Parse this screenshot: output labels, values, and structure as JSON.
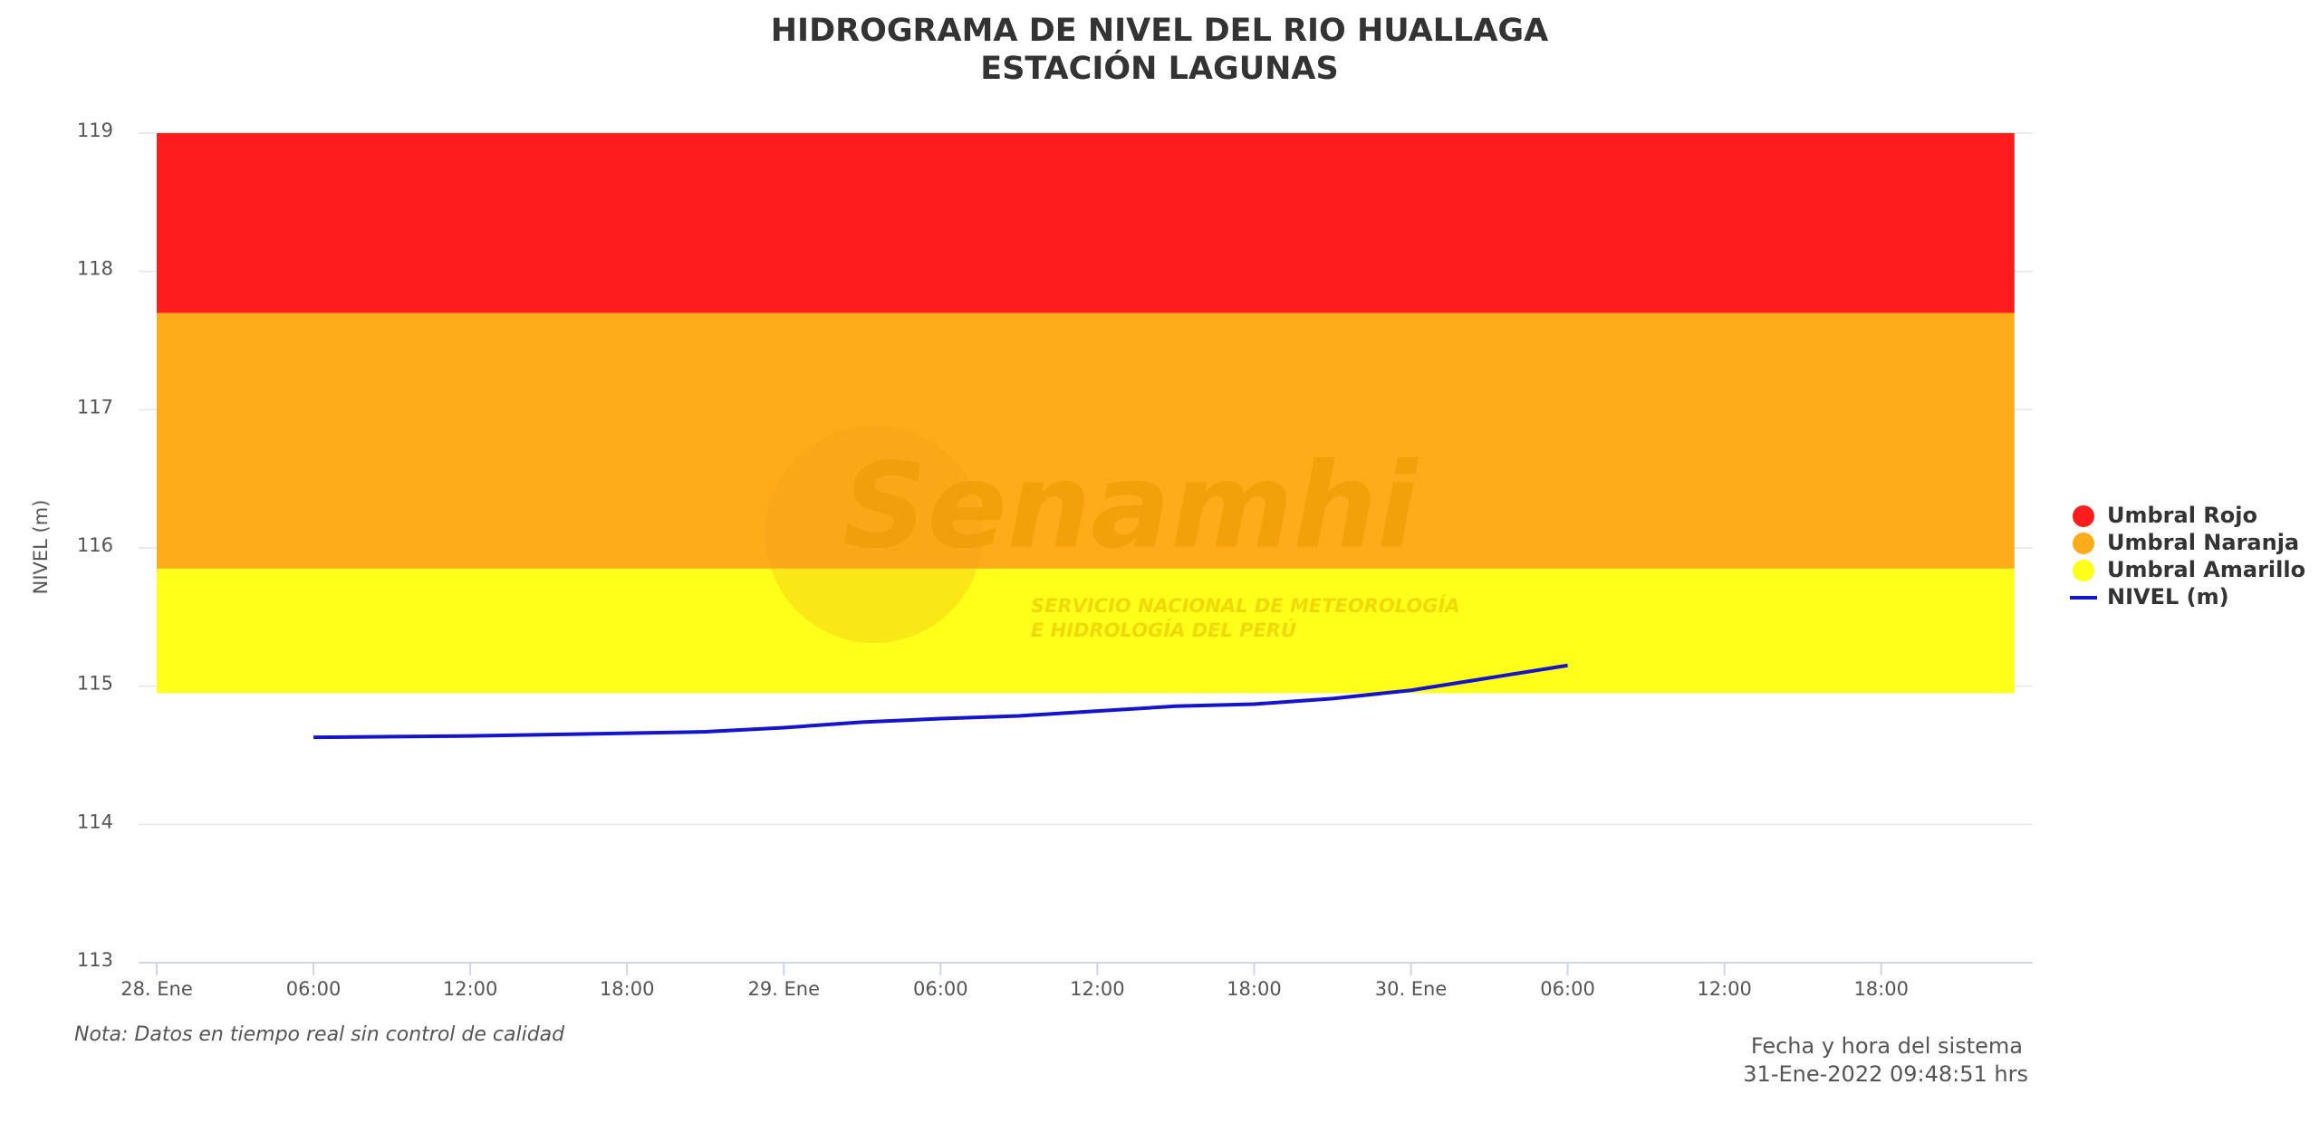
{
  "chart_data": {
    "type": "line",
    "title": "HIDROGRAMA DE NIVEL DEL RIO HUALLAGA",
    "subtitle": "ESTACIÓN LAGUNAS",
    "y_label": "NIVEL (m)",
    "ylim": [
      113,
      119
    ],
    "yticks": [
      113,
      114,
      115,
      116,
      117,
      118,
      119
    ],
    "xlim": [
      0,
      71.8
    ],
    "xticks": [
      {
        "value": 0,
        "label": "28. Ene"
      },
      {
        "value": 6,
        "label": "06:00"
      },
      {
        "value": 12,
        "label": "12:00"
      },
      {
        "value": 18,
        "label": "18:00"
      },
      {
        "value": 24,
        "label": "29. Ene"
      },
      {
        "value": 30,
        "label": "06:00"
      },
      {
        "value": 36,
        "label": "12:00"
      },
      {
        "value": 42,
        "label": "18:00"
      },
      {
        "value": 48,
        "label": "30. Ene"
      },
      {
        "value": 54,
        "label": "06:00"
      },
      {
        "value": 60,
        "label": "12:00"
      },
      {
        "value": 66,
        "label": "18:00"
      }
    ],
    "grid": true,
    "bands": [
      {
        "name": "Umbral Rojo",
        "color": "#ff1c1c",
        "from": 117.7,
        "to": 119
      },
      {
        "name": "Umbral Naranja",
        "color": "#ffab1a",
        "from": 115.85,
        "to": 117.7
      },
      {
        "name": "Umbral Amarillo",
        "color": "#ffff19",
        "from": 114.95,
        "to": 115.85
      }
    ],
    "series": [
      {
        "name": "NIVEL (m)",
        "color": "#1414cc",
        "x": [
          6,
          9,
          12,
          15,
          18,
          21,
          24,
          27,
          30,
          33,
          36,
          39,
          42,
          45,
          48,
          51,
          54
        ],
        "values": [
          114.63,
          114.635,
          114.64,
          114.65,
          114.66,
          114.67,
          114.7,
          114.74,
          114.765,
          114.785,
          114.82,
          114.855,
          114.87,
          114.91,
          114.97,
          115.06,
          115.15
        ]
      }
    ],
    "legend": "right",
    "watermark": {
      "name": "Senamhi",
      "line1": "SERVICIO NACIONAL DE METEOROLOGÍA",
      "line2": "E HIDROLOGÍA DEL PERÚ"
    },
    "note": "Nota: Datos en tiempo real sin control de calidad",
    "system_label": "Fecha y hora del sistema",
    "system_time": "31-Ene-2022 09:48:51 hrs"
  }
}
